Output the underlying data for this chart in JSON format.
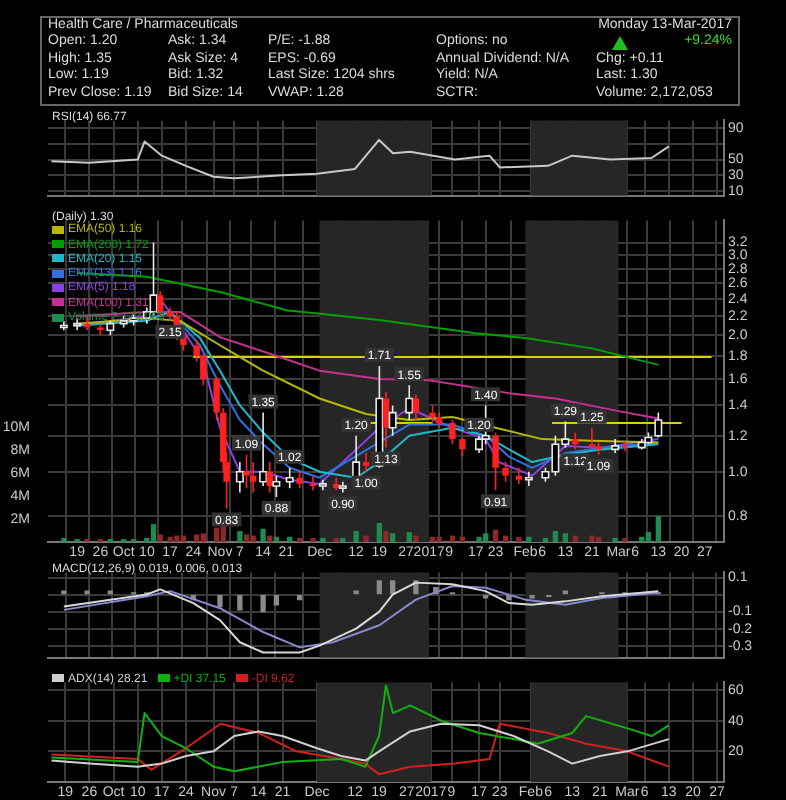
{
  "chart_data": [
    {
      "type": "other",
      "annotations": [
        "Health Care / Pharmaceuticals",
        "Monday 13-Mar-2017",
        "Open: 1.20",
        "Ask: 1.34",
        "P/E: -1.88",
        "Options: no",
        "+9.24%",
        "High: 1.35",
        "Ask Size: 4",
        "EPS: -0.69",
        "Annual Dividend: N/A",
        "Chg: +0.11",
        "Low: 1.19",
        "Bid: 1.32",
        "Last Size: 1204 shrs",
        "Yield: N/A",
        "Last: 1.30",
        "Prev Close: 1.19",
        "Bid Size: 14",
        "VWAP: 1.28",
        "SCTR:",
        "Volume: 2,172,053"
      ]
    },
    {
      "type": "line",
      "title": "RSI(14) 66.77",
      "x": [
        "2016-09-15",
        "2016-09-26",
        "2016-10-10",
        "2016-10-12",
        "2016-10-17",
        "2016-10-24",
        "2016-11-01",
        "2016-11-07",
        "2016-11-21",
        "2016-12-01",
        "2016-12-12",
        "2016-12-19",
        "2016-12-23",
        "2016-12-28",
        "2017-01-10",
        "2017-01-20",
        "2017-01-23",
        "2017-02-06",
        "2017-02-13",
        "2017-02-24",
        "2017-03-08",
        "2017-03-13"
      ],
      "series": [
        {
          "color": "#c8c8c8",
          "values": [
            48,
            46,
            50,
            73,
            55,
            42,
            28,
            26,
            30,
            32,
            38,
            75,
            58,
            60,
            50,
            55,
            40,
            42,
            55,
            50,
            52,
            66.77
          ]
        }
      ],
      "xlim": [
        "2016-09-14",
        "2017-03-29"
      ],
      "xticks": [
        {
          "value": "2016-09-19",
          "label": null
        },
        {
          "value": "2016-09-26",
          "label": null
        },
        {
          "value": "2016-10-03",
          "label": null
        },
        {
          "value": "2016-10-10",
          "label": null
        },
        {
          "value": "2016-10-17",
          "label": null
        },
        {
          "value": "2016-10-24",
          "label": null
        },
        {
          "value": "2016-11-01",
          "label": null
        },
        {
          "value": "2016-11-07",
          "label": null
        },
        {
          "value": "2016-11-14",
          "label": null
        },
        {
          "value": "2016-11-21",
          "label": null
        },
        {
          "value": "2016-12-01",
          "label": null
        },
        {
          "value": "2016-12-12",
          "label": null
        },
        {
          "value": "2016-12-19",
          "label": null
        },
        {
          "value": "2016-12-27",
          "label": null
        },
        {
          "value": "2017-01-03",
          "label": null
        },
        {
          "value": "2017-01-09",
          "label": null
        },
        {
          "value": "2017-01-17",
          "label": null
        },
        {
          "value": "2017-01-23",
          "label": null
        },
        {
          "value": "2017-02-01",
          "label": null
        },
        {
          "value": "2017-02-06",
          "label": null
        },
        {
          "value": "2017-02-13",
          "label": null
        },
        {
          "value": "2017-02-21",
          "label": null
        },
        {
          "value": "2017-03-01",
          "label": null
        },
        {
          "value": "2017-03-06",
          "label": null
        },
        {
          "value": "2017-03-13",
          "label": null
        },
        {
          "value": "2017-03-20",
          "label": null
        },
        {
          "value": "2017-03-27",
          "label": null
        }
      ],
      "ylim": [
        4,
        100
      ],
      "yticks": [
        10,
        30,
        50,
        {
          "value": 70,
          "label": null
        },
        90
      ],
      "tick_labels": "y",
      "grid": true,
      "bands": [
        {
          "axis": "x",
          "from": "2016-12-01",
          "to": "2017-01-03",
          "color": "#262626"
        },
        {
          "axis": "x",
          "from": "2017-02-01",
          "to": "2017-03-01",
          "color": "#262626"
        }
      ]
    },
    {
      "type": "candlestick",
      "title": "(Daily) 1.30",
      "legend": "top left",
      "log": "y",
      "grid": true,
      "x": [
        "2016-09-15",
        "2016-09-19",
        "2016-09-22",
        "2016-09-26",
        "2016-09-29",
        "2016-10-03",
        "2016-10-06",
        "2016-10-10",
        "2016-10-12",
        "2016-10-14",
        "2016-10-17",
        "2016-10-19",
        "2016-10-21",
        "2016-10-25",
        "2016-10-27",
        "2016-10-31",
        "2016-11-02",
        "2016-11-03",
        "2016-11-07",
        "2016-11-09",
        "2016-11-11",
        "2016-11-14",
        "2016-11-16",
        "2016-11-18",
        "2016-11-22",
        "2016-11-25",
        "2016-11-29",
        "2016-12-02",
        "2016-12-06",
        "2016-12-08",
        "2016-12-12",
        "2016-12-15",
        "2016-12-19",
        "2016-12-21",
        "2016-12-23",
        "2016-12-28",
        "2016-12-30",
        "2017-01-04",
        "2017-01-06",
        "2017-01-10",
        "2017-01-13",
        "2017-01-18",
        "2017-01-20",
        "2017-01-23",
        "2017-01-26",
        "2017-01-30",
        "2017-02-02",
        "2017-02-07",
        "2017-02-10",
        "2017-02-13",
        "2017-02-16",
        "2017-02-21",
        "2017-02-23",
        "2017-02-28",
        "2017-03-03",
        "2017-03-08",
        "2017-03-10",
        "2017-03-13"
      ],
      "ohlc": [
        [
          2.1,
          2.15,
          2.05,
          2.1
        ],
        [
          2.1,
          2.18,
          2.05,
          2.12
        ],
        [
          2.12,
          2.2,
          2.05,
          2.08
        ],
        [
          2.08,
          2.12,
          2.0,
          2.05
        ],
        [
          2.05,
          2.15,
          2.0,
          2.12
        ],
        [
          2.12,
          2.2,
          2.08,
          2.15
        ],
        [
          2.15,
          2.22,
          2.1,
          2.18
        ],
        [
          2.18,
          2.3,
          2.12,
          2.25
        ],
        [
          2.25,
          3.2,
          2.2,
          2.45
        ],
        [
          2.45,
          2.5,
          2.2,
          2.25
        ],
        [
          2.25,
          2.3,
          2.15,
          2.2
        ],
        [
          2.2,
          2.25,
          1.95,
          2.0
        ],
        [
          2.0,
          2.05,
          1.85,
          1.9
        ],
        [
          1.9,
          1.95,
          1.75,
          1.8
        ],
        [
          1.8,
          1.82,
          1.55,
          1.6
        ],
        [
          1.6,
          1.62,
          1.3,
          1.35
        ],
        [
          1.35,
          1.38,
          1.0,
          1.05
        ],
        [
          1.05,
          1.1,
          0.83,
          0.95
        ],
        [
          0.95,
          1.05,
          0.9,
          1.0
        ],
        [
          1.0,
          1.09,
          0.92,
          0.98
        ],
        [
          0.98,
          1.05,
          0.9,
          0.95
        ],
        [
          0.95,
          1.35,
          0.93,
          1.0
        ],
        [
          1.0,
          1.05,
          0.9,
          0.93
        ],
        [
          0.93,
          0.98,
          0.88,
          0.95
        ],
        [
          0.95,
          1.02,
          0.92,
          0.97
        ],
        [
          0.97,
          1.0,
          0.92,
          0.94
        ],
        [
          0.94,
          0.98,
          0.91,
          0.93
        ],
        [
          0.93,
          0.96,
          0.91,
          0.94
        ],
        [
          0.94,
          0.97,
          0.91,
          0.92
        ],
        [
          0.92,
          0.95,
          0.9,
          0.93
        ],
        [
          0.93,
          1.2,
          0.92,
          1.05
        ],
        [
          1.05,
          1.1,
          1.0,
          1.03
        ],
        [
          1.03,
          1.71,
          1.02,
          1.45
        ],
        [
          1.45,
          1.5,
          1.13,
          1.25
        ],
        [
          1.25,
          1.4,
          1.2,
          1.35
        ],
        [
          1.35,
          1.55,
          1.3,
          1.45
        ],
        [
          1.45,
          1.48,
          1.3,
          1.35
        ],
        [
          1.35,
          1.4,
          1.28,
          1.32
        ],
        [
          1.32,
          1.35,
          1.25,
          1.28
        ],
        [
          1.28,
          1.3,
          1.15,
          1.18
        ],
        [
          1.18,
          1.19,
          1.08,
          1.12
        ],
        [
          1.12,
          1.2,
          1.1,
          1.18
        ],
        [
          1.18,
          1.4,
          1.15,
          1.2
        ],
        [
          1.2,
          1.22,
          0.91,
          1.02
        ],
        [
          1.02,
          1.05,
          0.95,
          0.98
        ],
        [
          0.98,
          1.02,
          0.94,
          0.96
        ],
        [
          0.96,
          1.0,
          0.93,
          0.97
        ],
        [
          0.97,
          1.02,
          0.95,
          1.0
        ],
        [
          1.0,
          1.2,
          0.98,
          1.15
        ],
        [
          1.15,
          1.29,
          1.13,
          1.18
        ],
        [
          1.18,
          1.22,
          1.12,
          1.15
        ],
        [
          1.15,
          1.25,
          1.13,
          1.14
        ],
        [
          1.14,
          1.16,
          1.09,
          1.12
        ],
        [
          1.12,
          1.18,
          1.1,
          1.14
        ],
        [
          1.14,
          1.17,
          1.11,
          1.13
        ],
        [
          1.13,
          1.18,
          1.12,
          1.16
        ],
        [
          1.16,
          1.22,
          1.15,
          1.19
        ],
        [
          1.2,
          1.35,
          1.19,
          1.3
        ]
      ],
      "series": [
        {
          "name": "EMA(50) 1.16",
          "type": "line",
          "color": "#b8b800",
          "x": [
            "2016-09-19",
            "2016-10-10",
            "2016-10-20",
            "2016-11-01",
            "2016-11-14",
            "2016-12-01",
            "2016-12-15",
            "2016-12-28",
            "2017-01-10",
            "2017-01-23",
            "2017-02-06",
            "2017-02-21",
            "2017-03-13"
          ],
          "values": [
            2.12,
            2.18,
            2.15,
            1.9,
            1.67,
            1.45,
            1.34,
            1.3,
            1.32,
            1.25,
            1.18,
            1.17,
            1.16
          ]
        },
        {
          "name": "EMA(200) 1.72",
          "type": "line",
          "color": "#00a000",
          "x": [
            "2016-09-19",
            "2016-10-10",
            "2016-11-01",
            "2016-11-21",
            "2016-12-19",
            "2017-01-17",
            "2017-02-01",
            "2017-02-21",
            "2017-03-13"
          ],
          "values": [
            2.74,
            2.69,
            2.49,
            2.27,
            2.16,
            2.02,
            1.97,
            1.87,
            1.72
          ]
        },
        {
          "name": "EMA(20) 1.15",
          "type": "line",
          "color": "#20b8c8",
          "x": [
            "2016-09-19",
            "2016-10-10",
            "2016-10-17",
            "2016-10-26",
            "2016-11-01",
            "2016-11-07",
            "2016-11-14",
            "2016-11-22",
            "2016-12-01",
            "2016-12-12",
            "2016-12-19",
            "2016-12-28",
            "2017-01-10",
            "2017-01-20",
            "2017-01-27",
            "2017-02-03",
            "2017-02-13",
            "2017-02-24",
            "2017-03-13"
          ],
          "values": [
            2.1,
            2.15,
            2.25,
            1.97,
            1.67,
            1.4,
            1.22,
            1.07,
            1.0,
            0.97,
            1.05,
            1.2,
            1.25,
            1.2,
            1.12,
            1.05,
            1.09,
            1.12,
            1.15
          ]
        },
        {
          "name": "EMA(13) 1.16",
          "type": "line",
          "color": "#3070e0",
          "x": [
            "2016-09-19",
            "2016-10-10",
            "2016-10-17",
            "2016-10-26",
            "2016-11-01",
            "2016-11-07",
            "2016-11-14",
            "2016-11-22",
            "2016-12-01",
            "2016-12-28",
            "2017-01-10",
            "2017-01-20",
            "2017-01-27",
            "2017-02-03",
            "2017-02-13",
            "2017-02-24",
            "2017-03-13"
          ],
          "values": [
            2.1,
            2.16,
            2.25,
            1.9,
            1.55,
            1.3,
            1.15,
            1.02,
            0.97,
            1.27,
            1.27,
            1.2,
            1.08,
            1.02,
            1.1,
            1.13,
            1.16
          ]
        },
        {
          "name": "EMA(5) 1.18",
          "type": "line",
          "color": "#8a40e0",
          "x": [
            "2016-09-19",
            "2016-10-10",
            "2016-10-14",
            "2016-10-20",
            "2016-10-27",
            "2016-11-01",
            "2016-11-07",
            "2016-11-14",
            "2016-11-22",
            "2016-12-01",
            "2016-12-19",
            "2016-12-28",
            "2017-01-10",
            "2017-01-20",
            "2017-01-24",
            "2017-02-03",
            "2017-02-13",
            "2017-02-24",
            "2017-03-13"
          ],
          "values": [
            2.1,
            2.2,
            2.4,
            2.1,
            1.75,
            1.25,
            1.0,
            1.0,
            0.96,
            0.94,
            1.25,
            1.38,
            1.25,
            1.18,
            1.05,
            0.98,
            1.14,
            1.13,
            1.18
          ]
        },
        {
          "name": "EMA(100) 1.31",
          "type": "line",
          "color": "#c83090",
          "x": [
            "2016-09-19",
            "2016-10-10",
            "2016-10-20",
            "2016-11-01",
            "2016-11-14",
            "2016-12-01",
            "2016-12-19",
            "2017-01-03",
            "2017-01-27",
            "2017-02-10",
            "2017-03-01",
            "2017-03-13"
          ],
          "values": [
            2.2,
            2.25,
            2.25,
            1.98,
            1.84,
            1.67,
            1.6,
            1.59,
            1.49,
            1.45,
            1.36,
            1.31
          ]
        },
        {
          "type": "line",
          "color": "#d4d400",
          "x": [
            "2016-10-24",
            "2017-03-29"
          ],
          "values": [
            1.79,
            1.79
          ]
        },
        {
          "type": "line",
          "color": "#d4d400",
          "x": [
            "2016-12-12",
            "2017-01-04"
          ],
          "values": [
            1.28,
            1.28
          ]
        },
        {
          "type": "line",
          "color": "#d4d400",
          "x": [
            "2017-02-09",
            "2017-03-20"
          ],
          "values": [
            1.28,
            1.28
          ]
        },
        {
          "name": "Volume 2,172,053",
          "type": "bar",
          "axis": "y2",
          "color": "#1e8c4e",
          "colors": [
            "#1e8c4e",
            "#1e8c4e",
            "#8c2a2a",
            "#8c2a2a",
            "#1e8c4e",
            "#1e8c4e",
            "#1e8c4e",
            "#1e8c4e",
            "#1e8c4e",
            "#8c2a2a",
            "#8c2a2a",
            "#8c2a2a",
            "#8c2a2a",
            "#8c2a2a",
            "#8c2a2a",
            "#8c2a2a",
            "#8c2a2a",
            "#8c2a2a",
            "#1e8c4e",
            "#8c2a2a",
            "#8c2a2a",
            "#1e8c4e",
            "#8c2a2a",
            "#1e8c4e",
            "#1e8c4e",
            "#8c2a2a",
            "#8c2a2a",
            "#1e8c4e",
            "#8c2a2a",
            "#1e8c4e",
            "#1e8c4e",
            "#8c2a2a",
            "#1e8c4e",
            "#8c2a2a",
            "#1e8c4e",
            "#1e8c4e",
            "#8c2a2a",
            "#8c2a2a",
            "#8c2a2a",
            "#8c2a2a",
            "#8c2a2a",
            "#1e8c4e",
            "#1e8c4e",
            "#8c2a2a",
            "#8c2a2a",
            "#8c2a2a",
            "#1e8c4e",
            "#1e8c4e",
            "#1e8c4e",
            "#1e8c4e",
            "#8c2a2a",
            "#8c2a2a",
            "#8c2a2a",
            "#1e8c4e",
            "#8c2a2a",
            "#1e8c4e",
            "#1e8c4e",
            "#1e8c4e"
          ],
          "values": [
            300000,
            200000,
            200000,
            200000,
            200000,
            200000,
            200000,
            300000,
            1500000,
            600000,
            400000,
            500000,
            500000,
            600000,
            700000,
            1200000,
            1500000,
            null,
            900000,
            600000,
            500000,
            1100000,
            500000,
            400000,
            400000,
            300000,
            300000,
            300000,
            300000,
            300000,
            900000,
            500000,
            1600000,
            900000,
            700000,
            800000,
            500000,
            400000,
            400000,
            500000,
            400000,
            400000,
            700000,
            1000000,
            500000,
            400000,
            400000,
            300000,
            900000,
            700000,
            500000,
            500000,
            400000,
            300000,
            300000,
            400000,
            800000,
            2200000
          ]
        }
      ],
      "xlim": [
        "2016-09-14",
        "2017-03-29"
      ],
      "xticks": [
        {
          "value": "2016-09-19",
          "label": "19"
        },
        {
          "value": "2016-09-26",
          "label": "26"
        },
        {
          "value": "2016-10-03",
          "label": "Oct"
        },
        {
          "value": "2016-10-10",
          "label": "10"
        },
        {
          "value": "2016-10-17",
          "label": "17"
        },
        {
          "value": "2016-10-24",
          "label": "24"
        },
        {
          "value": "2016-11-01",
          "label": "Nov"
        },
        {
          "value": "2016-11-07",
          "label": "7"
        },
        {
          "value": "2016-11-14",
          "label": "14"
        },
        {
          "value": "2016-11-21",
          "label": "21"
        },
        {
          "value": "2016-12-01",
          "label": "Dec"
        },
        {
          "value": "2016-12-12",
          "label": "12"
        },
        {
          "value": "2016-12-19",
          "label": "19"
        },
        {
          "value": "2016-12-27",
          "label": "27"
        },
        {
          "value": "2017-01-03",
          "label": "2017"
        },
        {
          "value": "2017-01-09",
          "label": "9"
        },
        {
          "value": "2017-01-17",
          "label": "17"
        },
        {
          "value": "2017-01-23",
          "label": "23"
        },
        {
          "value": "2017-02-01",
          "label": "Feb"
        },
        {
          "value": "2017-02-06",
          "label": "6"
        },
        {
          "value": "2017-02-13",
          "label": "13"
        },
        {
          "value": "2017-02-21",
          "label": "21"
        },
        {
          "value": "2017-03-01",
          "label": "Mar"
        },
        {
          "value": "2017-03-06",
          "label": "6"
        },
        {
          "value": "2017-03-13",
          "label": "13"
        },
        {
          "value": "2017-03-20",
          "label": "20"
        },
        {
          "value": "2017-03-27",
          "label": "27"
        }
      ],
      "ylim": [
        0.7,
        3.58
      ],
      "yticks": [
        0.8,
        {
          "value": 1,
          "label": "1.0"
        },
        1.2,
        1.4,
        1.6,
        1.8,
        {
          "value": 2,
          "label": "2.0"
        },
        2.2,
        2.4,
        2.6,
        2.8,
        {
          "value": 3,
          "label": "3.0"
        },
        3.2
      ],
      "y2lim": [
        0,
        28000000
      ],
      "y2ticks": [
        {
          "value": 2000000,
          "label": "2M"
        },
        {
          "value": 4000000,
          "label": "4M"
        },
        {
          "value": 6000000,
          "label": "6M"
        },
        {
          "value": 8000000,
          "label": "8M"
        },
        {
          "value": 10000000,
          "label": "10M"
        }
      ],
      "bands": [
        {
          "axis": "x",
          "from": "2016-12-01",
          "to": "2017-01-03",
          "color": "#262626"
        },
        {
          "axis": "x",
          "from": "2017-02-01",
          "to": "2017-03-01",
          "color": "#262626"
        }
      ],
      "annotations": [
        {
          "text": "2.15",
          "x": "2016-10-17",
          "y": 2.15
        },
        {
          "text": "0.83",
          "x": "2016-11-03",
          "y": 0.83
        },
        {
          "text": "1.09",
          "x": "2016-11-09",
          "y": 1.09
        },
        {
          "text": "1.35",
          "x": "2016-11-14",
          "y": 1.35
        },
        {
          "text": "0.88",
          "x": "2016-11-18",
          "y": 0.88
        },
        {
          "text": "1.02",
          "x": "2016-11-22",
          "y": 1.02
        },
        {
          "text": "0.90",
          "x": "2016-12-08",
          "y": 0.9
        },
        {
          "text": "1.20",
          "x": "2016-12-12",
          "y": 1.2
        },
        {
          "text": "1.00",
          "x": "2016-12-15",
          "y": 1.0
        },
        {
          "text": "1.71",
          "x": "2016-12-19",
          "y": 1.71
        },
        {
          "text": "1.13",
          "x": "2016-12-21",
          "y": 1.13
        },
        {
          "text": "1.55",
          "x": "2016-12-28",
          "y": 1.55
        },
        {
          "text": "1.20",
          "x": "2017-01-18",
          "y": 1.2
        },
        {
          "text": "1.40",
          "x": "2017-01-20",
          "y": 1.4
        },
        {
          "text": "0.91",
          "x": "2017-01-23",
          "y": 0.91
        },
        {
          "text": "1.29",
          "x": "2017-02-13",
          "y": 1.29
        },
        {
          "text": "1.12",
          "x": "2017-02-16",
          "y": 1.12
        },
        {
          "text": "1.25",
          "x": "2017-02-21",
          "y": 1.25
        },
        {
          "text": "1.09",
          "x": "2017-02-23",
          "y": 1.09
        }
      ]
    },
    {
      "type": "line",
      "title": "MACD(12,26,9) 0.019, 0.006, 0.013",
      "tick_labels": "y",
      "grid": true,
      "series": [
        {
          "color": "#d8d8d8",
          "x": [
            "2016-09-15",
            "2016-10-10",
            "2016-10-14",
            "2016-10-24",
            "2016-11-01",
            "2016-11-07",
            "2016-11-14",
            "2016-11-25",
            "2016-12-01",
            "2016-12-12",
            "2016-12-19",
            "2016-12-23",
            "2016-12-30",
            "2017-01-10",
            "2017-01-20",
            "2017-01-27",
            "2017-02-03",
            "2017-02-13",
            "2017-02-24",
            "2017-03-13"
          ],
          "values": [
            -0.07,
            0.0,
            0.03,
            -0.05,
            -0.15,
            -0.28,
            -0.34,
            -0.34,
            -0.3,
            -0.2,
            -0.1,
            0.0,
            0.07,
            0.06,
            0.02,
            -0.05,
            -0.06,
            -0.04,
            -0.01,
            0.02
          ]
        },
        {
          "color": "#8888cc",
          "x": [
            "2016-09-15",
            "2016-10-10",
            "2016-10-17",
            "2016-11-01",
            "2016-11-14",
            "2016-11-25",
            "2016-12-05",
            "2016-12-19",
            "2016-12-30",
            "2017-01-10",
            "2017-01-20",
            "2017-02-01",
            "2017-02-13",
            "2017-02-24",
            "2017-03-13"
          ],
          "values": [
            -0.09,
            -0.01,
            0.02,
            -0.08,
            -0.22,
            -0.31,
            -0.28,
            -0.18,
            -0.03,
            0.05,
            0.04,
            -0.03,
            -0.06,
            -0.02,
            0.01
          ]
        },
        {
          "type": "bar",
          "color": "#8a8a8a",
          "x": [
            "2016-09-15",
            "2016-09-22",
            "2016-09-29",
            "2016-10-06",
            "2016-10-10",
            "2016-10-17",
            "2016-10-24",
            "2016-11-01",
            "2016-11-07",
            "2016-11-14",
            "2016-11-18",
            "2016-11-25",
            "2016-12-12",
            "2016-12-19",
            "2016-12-23",
            "2016-12-30",
            "2017-01-05",
            "2017-01-10",
            "2017-01-20",
            "2017-01-27",
            "2017-02-03",
            "2017-02-08",
            "2017-02-13",
            "2017-02-24",
            "2017-03-03",
            "2017-03-13"
          ],
          "values": [
            0.02,
            0.02,
            0.02,
            0.01,
            0.01,
            null,
            -0.03,
            -0.07,
            -0.09,
            -0.1,
            -0.06,
            -0.03,
            0.02,
            0.08,
            0.08,
            0.08,
            0.04,
            0.01,
            -0.02,
            -0.03,
            -0.02,
            -0.01,
            0.02,
            0.01,
            0.01,
            0.01
          ]
        }
      ],
      "xlim": [
        "2016-09-14",
        "2017-03-29"
      ],
      "xticks": [
        {
          "value": "2016-09-19",
          "label": null
        },
        {
          "value": "2016-09-26",
          "label": null
        },
        {
          "value": "2016-10-03",
          "label": null
        },
        {
          "value": "2016-10-10",
          "label": null
        },
        {
          "value": "2016-10-17",
          "label": null
        },
        {
          "value": "2016-10-24",
          "label": null
        },
        {
          "value": "2016-11-01",
          "label": null
        },
        {
          "value": "2016-11-07",
          "label": null
        },
        {
          "value": "2016-11-14",
          "label": null
        },
        {
          "value": "2016-11-21",
          "label": null
        },
        {
          "value": "2016-12-01",
          "label": null
        },
        {
          "value": "2016-12-12",
          "label": null
        },
        {
          "value": "2016-12-19",
          "label": null
        },
        {
          "value": "2016-12-27",
          "label": null
        },
        {
          "value": "2017-01-03",
          "label": null
        },
        {
          "value": "2017-01-09",
          "label": null
        },
        {
          "value": "2017-01-17",
          "label": null
        },
        {
          "value": "2017-01-23",
          "label": null
        },
        {
          "value": "2017-02-01",
          "label": null
        },
        {
          "value": "2017-02-06",
          "label": null
        },
        {
          "value": "2017-02-13",
          "label": null
        },
        {
          "value": "2017-02-21",
          "label": null
        },
        {
          "value": "2017-03-01",
          "label": null
        },
        {
          "value": "2017-03-06",
          "label": null
        },
        {
          "value": "2017-03-13",
          "label": null
        },
        {
          "value": "2017-03-20",
          "label": null
        },
        {
          "value": "2017-03-27",
          "label": null
        }
      ],
      "ylim": [
        -0.37,
        0.13
      ],
      "yticks": [
        -0.3,
        -0.2,
        -0.1,
        {
          "value": 0,
          "label": null
        },
        0.1
      ],
      "bands": [
        {
          "axis": "x",
          "from": "2016-12-01",
          "to": "2017-01-03",
          "color": "#262626"
        },
        {
          "axis": "x",
          "from": "2017-02-01",
          "to": "2017-03-01",
          "color": "#262626"
        }
      ]
    },
    {
      "type": "line",
      "legend": "top left",
      "grid": true,
      "series": [
        {
          "name": "ADX(14) 28.21",
          "color": "#d0d0d0",
          "x": [
            "2016-09-15",
            "2016-09-26",
            "2016-10-10",
            "2016-10-17",
            "2016-10-24",
            "2016-11-01",
            "2016-11-07",
            "2016-11-14",
            "2016-11-21",
            "2016-12-01",
            "2016-12-08",
            "2016-12-15",
            "2016-12-19",
            "2016-12-28",
            "2017-01-06",
            "2017-01-17",
            "2017-01-27",
            "2017-02-06",
            "2017-02-13",
            "2017-02-21",
            "2017-03-01",
            "2017-03-13"
          ],
          "values": [
            14,
            12,
            10,
            12,
            17,
            20,
            30,
            33,
            30,
            22,
            17,
            14,
            20,
            33,
            38,
            37,
            30,
            20,
            12,
            17,
            20,
            28
          ]
        },
        {
          "name": "+DI 37.15",
          "color": "#10b010",
          "x": [
            "2016-09-15",
            "2016-10-10",
            "2016-10-12",
            "2016-10-17",
            "2016-10-24",
            "2016-11-01",
            "2016-11-07",
            "2016-11-21",
            "2016-12-08",
            "2016-12-15",
            "2016-12-19",
            "2016-12-21",
            "2016-12-23",
            "2016-12-28",
            "2017-01-06",
            "2017-01-17",
            "2017-01-27",
            "2017-02-03",
            "2017-02-13",
            "2017-02-17",
            "2017-03-01",
            "2017-03-08",
            "2017-03-13"
          ],
          "values": [
            16,
            13,
            45,
            30,
            22,
            10,
            7,
            13,
            15,
            10,
            30,
            63,
            45,
            50,
            40,
            32,
            28,
            25,
            32,
            43,
            35,
            30,
            37
          ]
        },
        {
          "name": "-DI 9.62",
          "color": "#d02020",
          "x": [
            "2016-09-15",
            "2016-10-10",
            "2016-10-14",
            "2016-10-24",
            "2016-11-03",
            "2016-11-14",
            "2016-11-25",
            "2016-12-08",
            "2016-12-15",
            "2016-12-19",
            "2016-12-28",
            "2017-01-10",
            "2017-01-20",
            "2017-01-23",
            "2017-02-06",
            "2017-02-17",
            "2017-03-01",
            "2017-03-13"
          ],
          "values": [
            18,
            15,
            8,
            22,
            38,
            32,
            20,
            15,
            12,
            5,
            10,
            12,
            15,
            38,
            32,
            25,
            20,
            10
          ]
        }
      ],
      "xlim": [
        "2016-09-14",
        "2017-03-29"
      ],
      "xticks": [
        {
          "value": "2016-09-19",
          "label": "19"
        },
        {
          "value": "2016-09-26",
          "label": "26"
        },
        {
          "value": "2016-10-03",
          "label": "Oct"
        },
        {
          "value": "2016-10-10",
          "label": "10"
        },
        {
          "value": "2016-10-17",
          "label": "17"
        },
        {
          "value": "2016-10-24",
          "label": "24"
        },
        {
          "value": "2016-11-01",
          "label": "Nov"
        },
        {
          "value": "2016-11-07",
          "label": "7"
        },
        {
          "value": "2016-11-14",
          "label": "14"
        },
        {
          "value": "2016-11-21",
          "label": "21"
        },
        {
          "value": "2016-12-01",
          "label": "Dec"
        },
        {
          "value": "2016-12-12",
          "label": "12"
        },
        {
          "value": "2016-12-19",
          "label": "19"
        },
        {
          "value": "2016-12-27",
          "label": "27"
        },
        {
          "value": "2017-01-03",
          "label": "2017"
        },
        {
          "value": "2017-01-09",
          "label": "9"
        },
        {
          "value": "2017-01-17",
          "label": "17"
        },
        {
          "value": "2017-01-23",
          "label": "23"
        },
        {
          "value": "2017-02-01",
          "label": "Feb"
        },
        {
          "value": "2017-02-06",
          "label": "6"
        },
        {
          "value": "2017-02-13",
          "label": "13"
        },
        {
          "value": "2017-02-21",
          "label": "21"
        },
        {
          "value": "2017-03-01",
          "label": "Mar"
        },
        {
          "value": "2017-03-06",
          "label": "6"
        },
        {
          "value": "2017-03-13",
          "label": "13"
        },
        {
          "value": "2017-03-20",
          "label": "20"
        },
        {
          "value": "2017-03-27",
          "label": "27"
        }
      ],
      "ylim": [
        0,
        65
      ],
      "yticks": [
        20,
        40,
        60
      ],
      "bands": [
        {
          "axis": "x",
          "from": "2016-12-01",
          "to": "2017-01-03",
          "color": "#262626"
        },
        {
          "axis": "x",
          "from": "2017-02-01",
          "to": "2017-03-01",
          "color": "#262626"
        }
      ]
    }
  ]
}
